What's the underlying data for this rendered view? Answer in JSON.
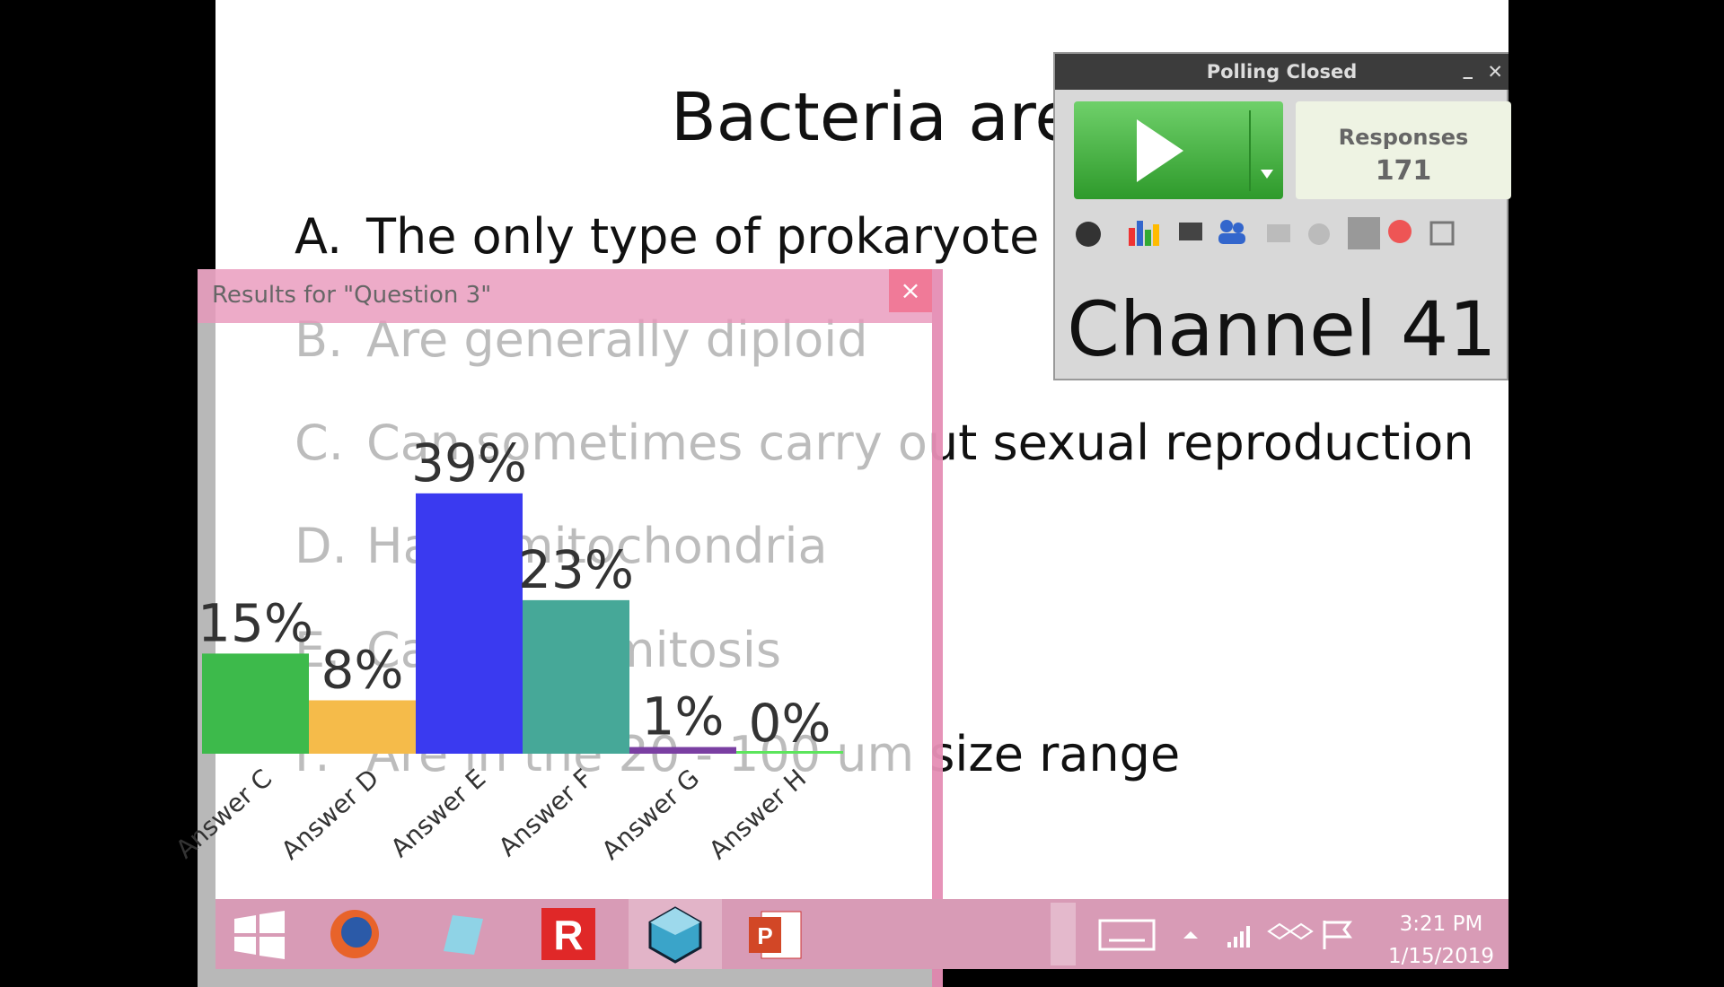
{
  "slide": {
    "title": "Bacteria are",
    "options": [
      {
        "letter": "A.",
        "text": "The only type of prokaryote"
      },
      {
        "letter": "B.",
        "text": "Are generally diploid"
      },
      {
        "letter": "C.",
        "text": "Can sometimes carry out sexual reproduction"
      },
      {
        "letter": "D.",
        "text": "Have mitochondria"
      },
      {
        "letter": "E.",
        "text": "Carry out mitosis"
      },
      {
        "letter": "F.",
        "text": "Are in the 20 - 100 um size range"
      }
    ]
  },
  "results_window": {
    "title": "Results for \"Question 3\""
  },
  "chart_data": {
    "type": "bar",
    "categories": [
      "Answer C",
      "Answer D",
      "Answer E",
      "Answer F",
      "Answer G",
      "Answer H"
    ],
    "values": [
      15,
      8,
      39,
      23,
      1,
      0
    ],
    "value_labels": [
      "15%",
      "8%",
      "39%",
      "23%",
      "1%",
      "0%"
    ],
    "colors": [
      "#3dba4b",
      "#f5bb4a",
      "#3a3af0",
      "#46a898",
      "#7a3fa2",
      "#5ce55c"
    ]
  },
  "polling": {
    "status": "Polling Closed",
    "responses_label": "Responses",
    "responses": "171",
    "channel": "Channel 41"
  },
  "taskbar": {
    "time": "3:21 PM",
    "date": "1/15/2019"
  }
}
